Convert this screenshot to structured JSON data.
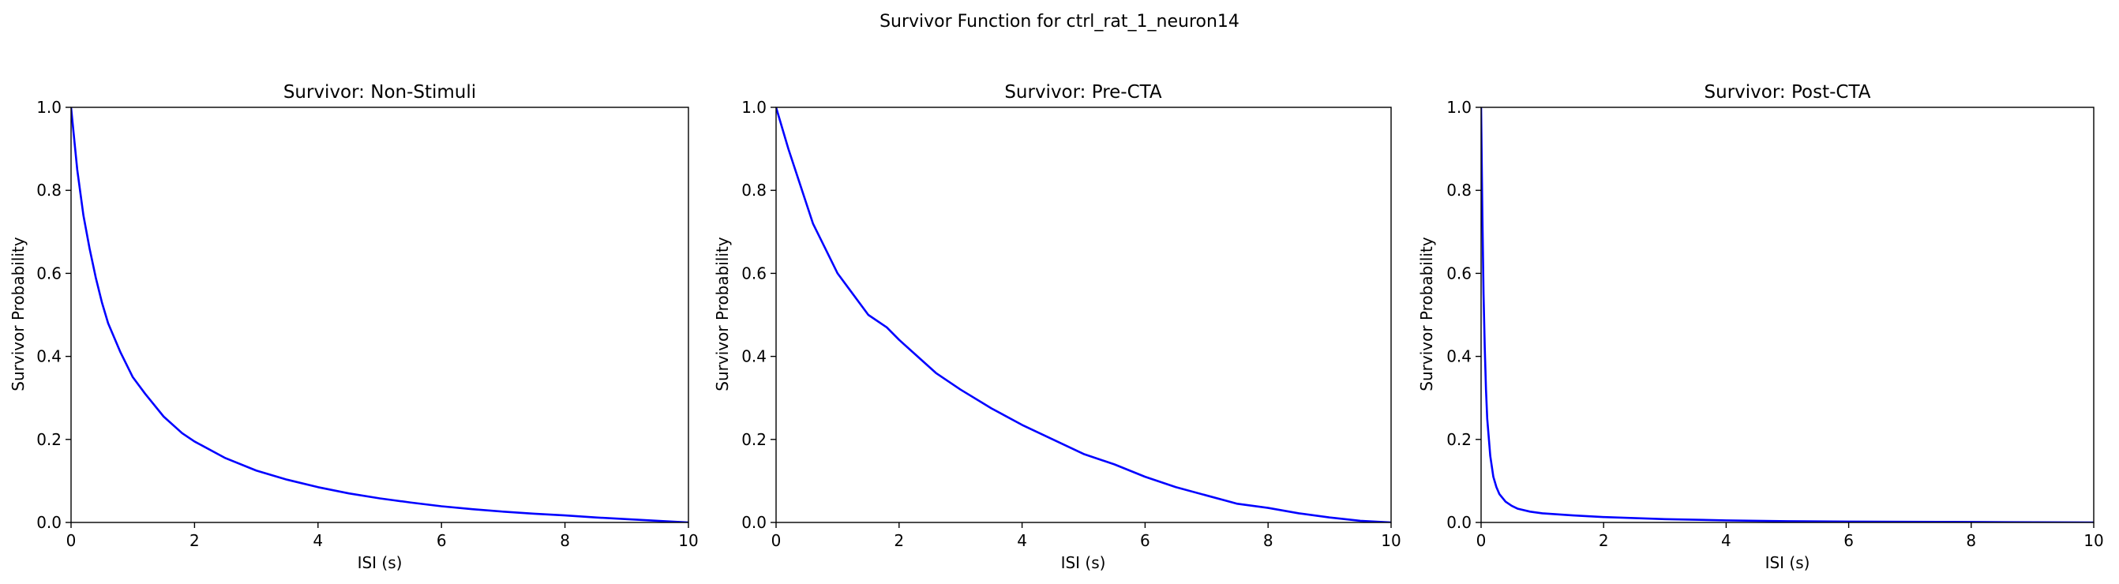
{
  "figure": {
    "suptitle": "Survivor Function for ctrl_rat_1_neuron14"
  },
  "line_color": "#0000ff",
  "chart_data": [
    {
      "type": "line",
      "title": "Survivor: Non-Stimuli",
      "xlabel": "ISI (s)",
      "ylabel": "Survivor Probability",
      "xlim": [
        0,
        10
      ],
      "ylim": [
        0,
        1
      ],
      "xticks": [
        "0",
        "2",
        "4",
        "6",
        "8",
        "10"
      ],
      "yticks": [
        "0.0",
        "0.2",
        "0.4",
        "0.6",
        "0.8",
        "1.0"
      ],
      "grid": false,
      "x": [
        0,
        0.1,
        0.2,
        0.3,
        0.4,
        0.5,
        0.6,
        0.8,
        1.0,
        1.2,
        1.5,
        1.8,
        2.0,
        2.5,
        3.0,
        3.5,
        4.0,
        4.5,
        5.0,
        5.5,
        6.0,
        6.5,
        7.0,
        7.5,
        8.0,
        8.5,
        9.0,
        9.5,
        10.0
      ],
      "y": [
        1.0,
        0.85,
        0.74,
        0.66,
        0.59,
        0.53,
        0.48,
        0.41,
        0.35,
        0.31,
        0.255,
        0.215,
        0.195,
        0.155,
        0.125,
        0.103,
        0.085,
        0.07,
        0.058,
        0.048,
        0.039,
        0.032,
        0.026,
        0.021,
        0.017,
        0.012,
        0.008,
        0.004,
        0.0
      ]
    },
    {
      "type": "line",
      "title": "Survivor: Pre-CTA",
      "xlabel": "ISI (s)",
      "ylabel": "Survivor Probability",
      "xlim": [
        0,
        10
      ],
      "ylim": [
        0,
        1
      ],
      "xticks": [
        "0",
        "2",
        "4",
        "6",
        "8",
        "10"
      ],
      "yticks": [
        "0.0",
        "0.2",
        "0.4",
        "0.6",
        "0.8",
        "1.0"
      ],
      "grid": false,
      "x": [
        0,
        0.2,
        0.4,
        0.6,
        0.8,
        1.0,
        1.2,
        1.5,
        1.8,
        2.0,
        2.3,
        2.6,
        3.0,
        3.5,
        4.0,
        4.5,
        5.0,
        5.5,
        6.0,
        6.5,
        7.0,
        7.5,
        8.0,
        8.5,
        9.0,
        9.5,
        10.0
      ],
      "y": [
        1.0,
        0.9,
        0.81,
        0.72,
        0.66,
        0.6,
        0.56,
        0.5,
        0.47,
        0.44,
        0.4,
        0.36,
        0.32,
        0.275,
        0.235,
        0.2,
        0.165,
        0.14,
        0.11,
        0.085,
        0.065,
        0.045,
        0.035,
        0.022,
        0.012,
        0.004,
        0.0
      ]
    },
    {
      "type": "line",
      "title": "Survivor: Post-CTA",
      "xlabel": "ISI (s)",
      "ylabel": "Survivor Probability",
      "xlim": [
        0,
        10
      ],
      "ylim": [
        0,
        1
      ],
      "xticks": [
        "0",
        "2",
        "4",
        "6",
        "8",
        "10"
      ],
      "yticks": [
        "0.0",
        "0.2",
        "0.4",
        "0.6",
        "0.8",
        "1.0"
      ],
      "grid": false,
      "x": [
        0,
        0.02,
        0.04,
        0.06,
        0.08,
        0.1,
        0.15,
        0.2,
        0.25,
        0.3,
        0.4,
        0.5,
        0.6,
        0.8,
        1.0,
        1.5,
        2.0,
        3.0,
        4.0,
        5.0,
        6.0,
        8.0,
        10.0
      ],
      "y": [
        1.0,
        0.75,
        0.55,
        0.42,
        0.32,
        0.25,
        0.16,
        0.11,
        0.085,
        0.068,
        0.05,
        0.04,
        0.033,
        0.026,
        0.022,
        0.017,
        0.013,
        0.008,
        0.005,
        0.003,
        0.002,
        0.001,
        0.0
      ]
    }
  ]
}
